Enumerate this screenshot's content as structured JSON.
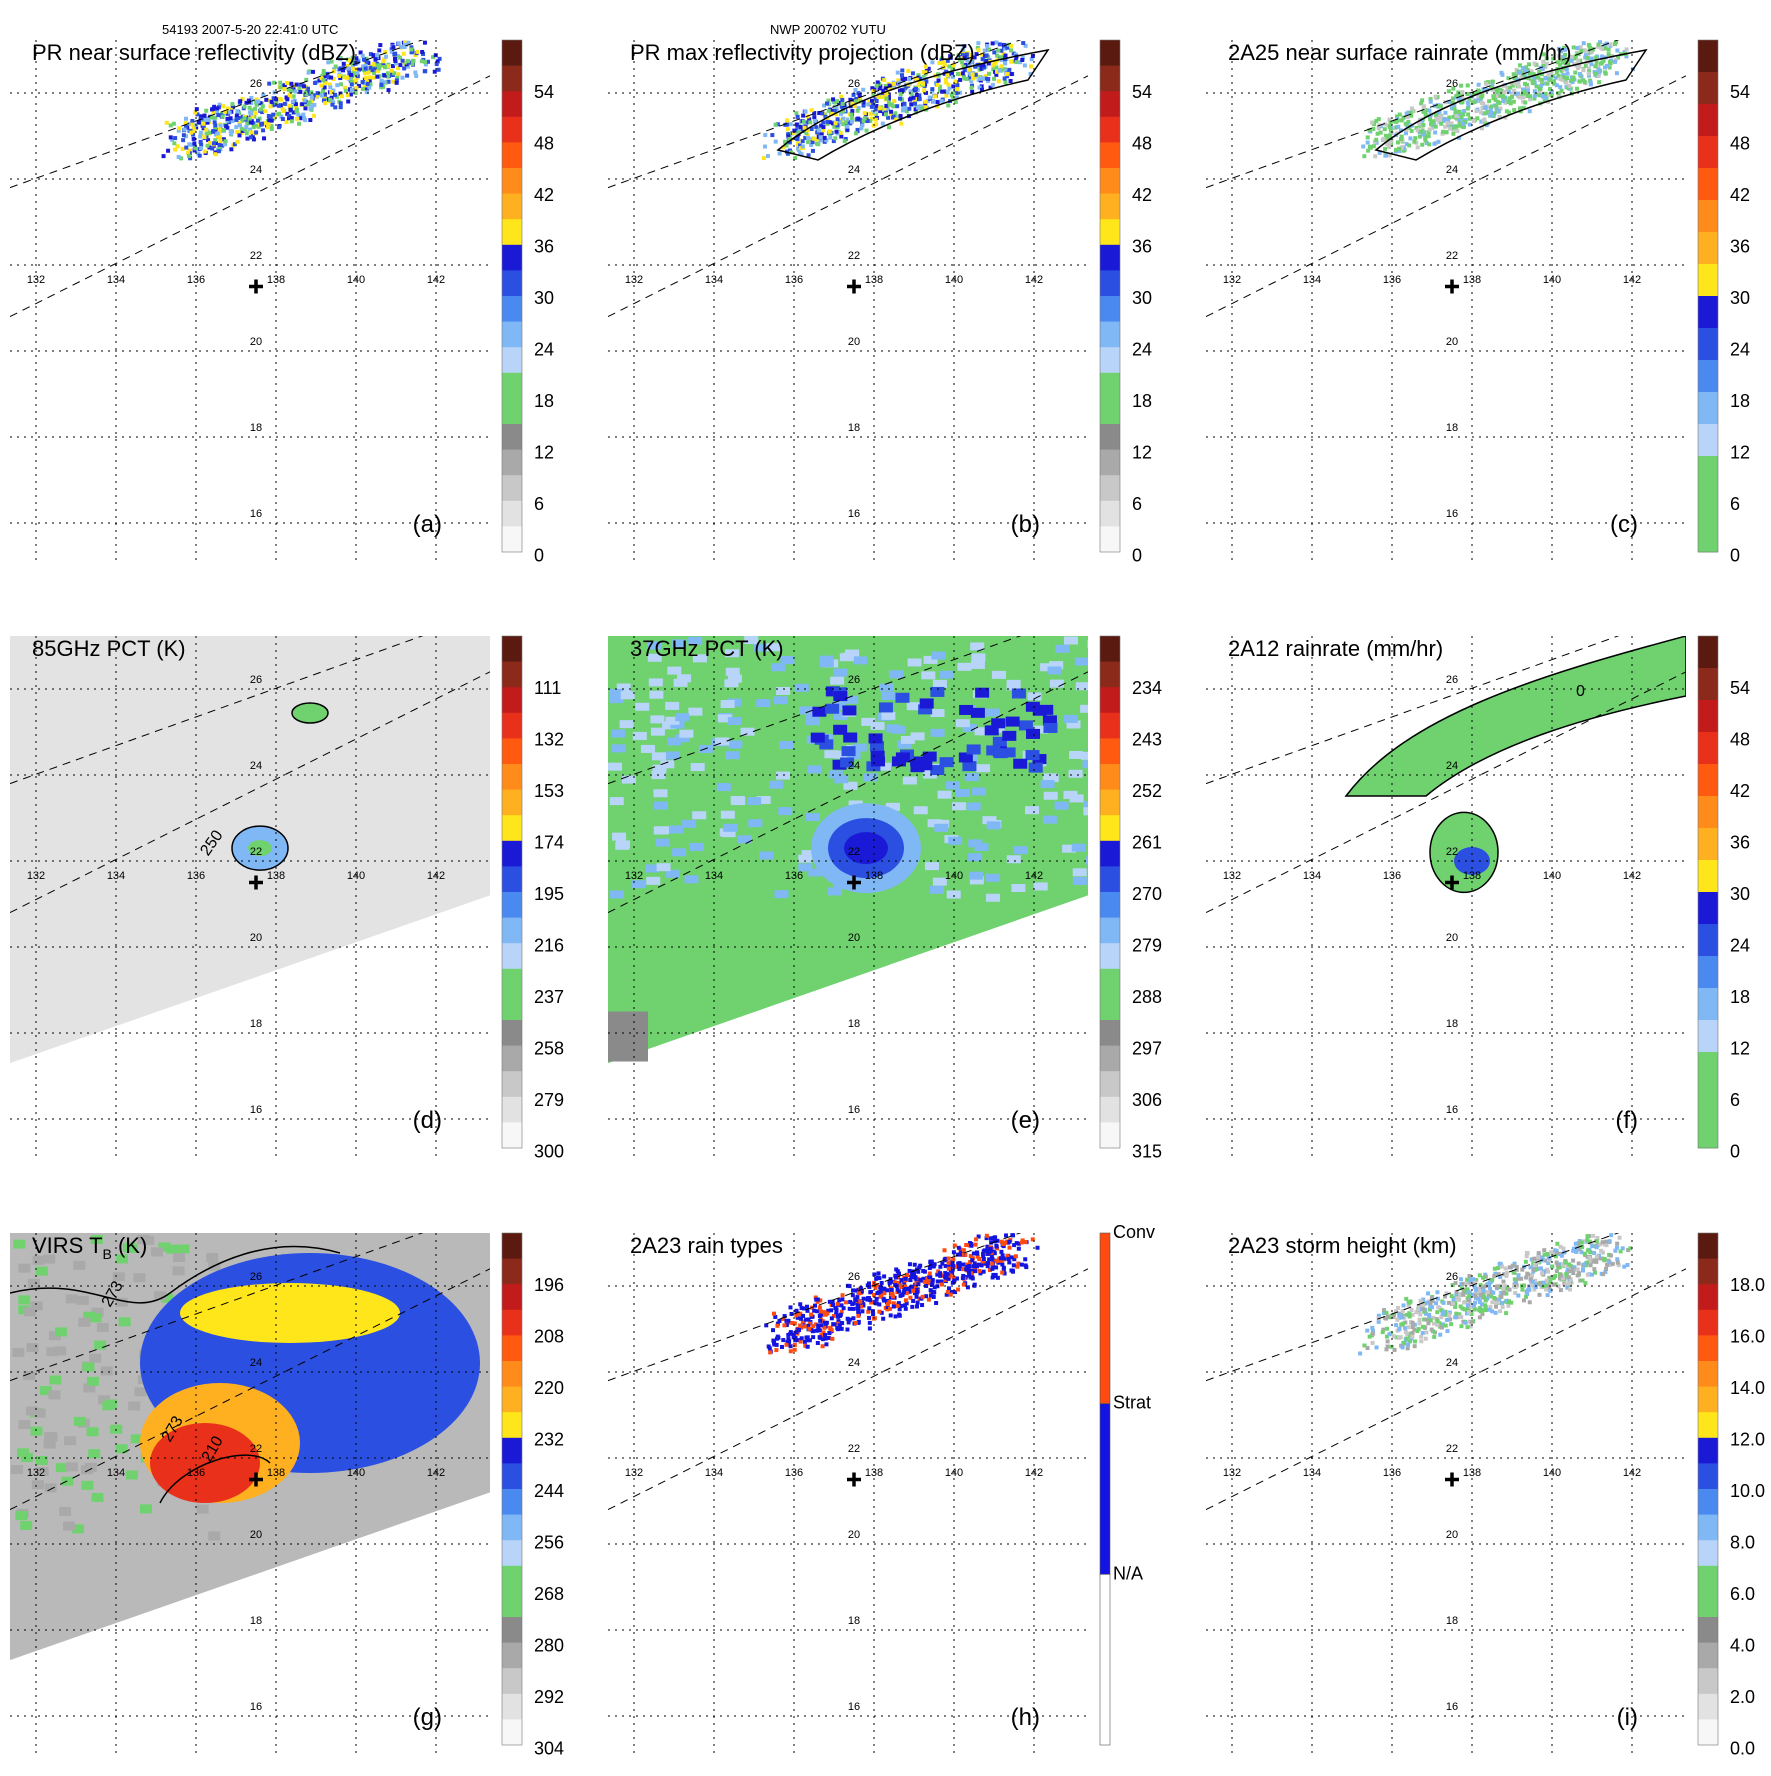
{
  "header": {
    "orbit_time": "54193 2007-5-20 22:41:0 UTC",
    "storm": "NWP 200702 YUTU"
  },
  "chart_data": {
    "type": "map-panels",
    "lon_ticks": [
      "132",
      "134",
      "136",
      "138",
      "140",
      "142"
    ],
    "lat_ticks": [
      "16",
      "18",
      "20",
      "22",
      "24",
      "26"
    ],
    "storm_center": {
      "lon": 137.5,
      "lat": 21.5
    },
    "panels": [
      {
        "id": "a",
        "title": "PR near surface reflectivity (dBZ)",
        "label": "(a)",
        "kind": "pr_swath",
        "colorbar": {
          "ticks": [
            "54",
            "48",
            "42",
            "36",
            "30",
            "24",
            "18",
            "12",
            "6",
            "0"
          ],
          "colors": [
            "#5a1a10",
            "#8b2a1a",
            "#c21b1b",
            "#e8301a",
            "#ff5a10",
            "#ff8c1a",
            "#ffb020",
            "#ffe61a",
            "#1a1ad6",
            "#2b4fe0",
            "#4a8af0",
            "#7fb8f5",
            "#b8d4f8",
            "#6fd26f",
            "#6fd26f",
            "#8a8a8a",
            "#a9a9a9",
            "#c8c8c8",
            "#e2e2e2",
            "#f7f7f7"
          ]
        }
      },
      {
        "id": "b",
        "title": "PR max reflectivity projection (dBZ)",
        "label": "(b)",
        "kind": "pr_swath_contour",
        "colorbar": {
          "ticks": [
            "54",
            "48",
            "42",
            "36",
            "30",
            "24",
            "18",
            "12",
            "6",
            "0"
          ],
          "colors": [
            "#5a1a10",
            "#8b2a1a",
            "#c21b1b",
            "#e8301a",
            "#ff5a10",
            "#ff8c1a",
            "#ffb020",
            "#ffe61a",
            "#1a1ad6",
            "#2b4fe0",
            "#4a8af0",
            "#7fb8f5",
            "#b8d4f8",
            "#6fd26f",
            "#6fd26f",
            "#8a8a8a",
            "#a9a9a9",
            "#c8c8c8",
            "#e2e2e2",
            "#f7f7f7"
          ]
        }
      },
      {
        "id": "c",
        "title": "2A25 near surface rainrate (mm/hr)",
        "label": "(c)",
        "kind": "pr_rain",
        "colorbar": {
          "ticks": [
            "54",
            "48",
            "42",
            "36",
            "30",
            "24",
            "18",
            "12",
            "6",
            "0"
          ],
          "colors": [
            "#5a1a10",
            "#8b2a1a",
            "#c21b1b",
            "#e8301a",
            "#ff5a10",
            "#ff8c1a",
            "#ffb020",
            "#ffe61a",
            "#1a1ad6",
            "#2b4fe0",
            "#4a8af0",
            "#7fb8f5",
            "#b8d4f8",
            "#6fd26f",
            "#6fd26f",
            "#6fd26f"
          ]
        }
      },
      {
        "id": "d",
        "title": "85GHz PCT (K)",
        "label": "(d)",
        "kind": "tmi_85",
        "contour_label": "250",
        "colorbar": {
          "ticks": [
            "111",
            "132",
            "153",
            "174",
            "195",
            "216",
            "237",
            "258",
            "279",
            "300"
          ],
          "colors": [
            "#5a1a10",
            "#8b2a1a",
            "#c21b1b",
            "#e8301a",
            "#ff5a10",
            "#ff8c1a",
            "#ffb020",
            "#ffe61a",
            "#1a1ad6",
            "#2b4fe0",
            "#4a8af0",
            "#7fb8f5",
            "#b8d4f8",
            "#6fd26f",
            "#6fd26f",
            "#8a8a8a",
            "#a9a9a9",
            "#c8c8c8",
            "#e2e2e2",
            "#f7f7f7"
          ]
        }
      },
      {
        "id": "e",
        "title": "37GHz PCT (K)",
        "label": "(e)",
        "kind": "tmi_37",
        "colorbar": {
          "ticks": [
            "234",
            "243",
            "252",
            "261",
            "270",
            "279",
            "288",
            "297",
            "306",
            "315"
          ],
          "colors": [
            "#5a1a10",
            "#8b2a1a",
            "#c21b1b",
            "#e8301a",
            "#ff5a10",
            "#ff8c1a",
            "#ffb020",
            "#ffe61a",
            "#1a1ad6",
            "#2b4fe0",
            "#4a8af0",
            "#7fb8f5",
            "#b8d4f8",
            "#6fd26f",
            "#6fd26f",
            "#8a8a8a",
            "#a9a9a9",
            "#c8c8c8",
            "#e2e2e2",
            "#f7f7f7"
          ]
        }
      },
      {
        "id": "f",
        "title": "2A12 rainrate (mm/hr)",
        "label": "(f)",
        "kind": "tmi_rain",
        "contour_label": "0",
        "colorbar": {
          "ticks": [
            "54",
            "48",
            "42",
            "36",
            "30",
            "24",
            "18",
            "12",
            "6",
            "0"
          ],
          "colors": [
            "#5a1a10",
            "#8b2a1a",
            "#c21b1b",
            "#e8301a",
            "#ff5a10",
            "#ff8c1a",
            "#ffb020",
            "#ffe61a",
            "#1a1ad6",
            "#2b4fe0",
            "#4a8af0",
            "#7fb8f5",
            "#b8d4f8",
            "#6fd26f",
            "#6fd26f",
            "#6fd26f"
          ]
        }
      },
      {
        "id": "g",
        "title": "VIRS T",
        "title_sub": "B",
        "title_tail": " (K)",
        "label": "(g)",
        "kind": "virs",
        "contour_labels": [
          "273",
          "273",
          "210"
        ],
        "colorbar": {
          "ticks": [
            "196",
            "208",
            "220",
            "232",
            "244",
            "256",
            "268",
            "280",
            "292",
            "304"
          ],
          "colors": [
            "#5a1a10",
            "#8b2a1a",
            "#c21b1b",
            "#e8301a",
            "#ff5a10",
            "#ff8c1a",
            "#ffb020",
            "#ffe61a",
            "#1a1ad6",
            "#2b4fe0",
            "#4a8af0",
            "#7fb8f5",
            "#b8d4f8",
            "#6fd26f",
            "#6fd26f",
            "#8a8a8a",
            "#a9a9a9",
            "#c8c8c8",
            "#e2e2e2",
            "#f7f7f7"
          ]
        }
      },
      {
        "id": "h",
        "title": "2A23 rain types",
        "label": "(h)",
        "kind": "rain_types",
        "colorbar": {
          "ticks": [
            "Conv",
            "Strat",
            "N/A"
          ],
          "colors": [
            "#ff4a10",
            "#1414e0",
            "#ffffff"
          ]
        }
      },
      {
        "id": "i",
        "title": "2A23 storm height (km)",
        "label": "(i)",
        "kind": "storm_height",
        "colorbar": {
          "ticks": [
            "18.0",
            "16.0",
            "14.0",
            "12.0",
            "10.0",
            "8.0",
            "6.0",
            "4.0",
            "2.0",
            "0.0"
          ],
          "colors": [
            "#5a1a10",
            "#8b2a1a",
            "#c21b1b",
            "#e8301a",
            "#ff5a10",
            "#ff8c1a",
            "#ffb020",
            "#ffe61a",
            "#1a1ad6",
            "#2b4fe0",
            "#4a8af0",
            "#7fb8f5",
            "#b8d4f8",
            "#6fd26f",
            "#6fd26f",
            "#8a8a8a",
            "#a9a9a9",
            "#c8c8c8",
            "#e2e2e2",
            "#f7f7f7"
          ]
        }
      }
    ]
  }
}
